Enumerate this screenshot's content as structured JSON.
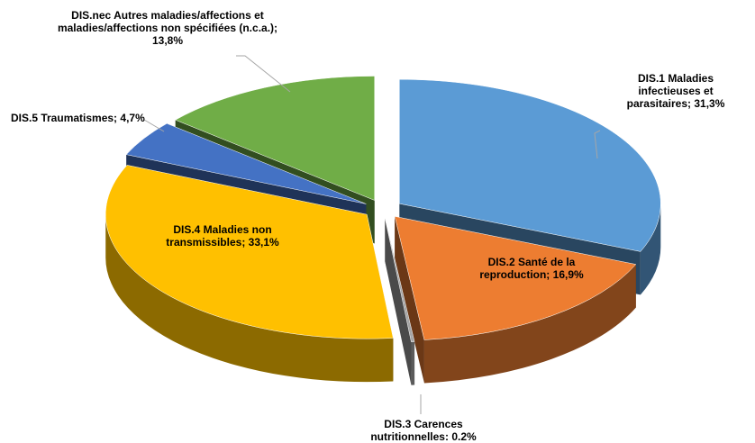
{
  "chart_data": {
    "type": "pie",
    "categories": [
      "DIS.1 Maladies infectieuses et parasitaires;",
      "DIS.2 Santé de la reproduction;",
      "DIS.3 Carences nutritionnelles:",
      "DIS.4 Maladies non transmissibles;",
      "DIS.5 Traumatismes;",
      "DIS.nec Autres maladies/affections et maladies/affections non spécifiées (n.c.a.);"
    ],
    "values": [
      31.3,
      16.9,
      0.2,
      33.1,
      4.7,
      13.8
    ],
    "value_labels": [
      "31,3%",
      "16,9%",
      "0.2%",
      "33,1%",
      "4,7%",
      "13,8%"
    ],
    "colors": [
      "#5b9bd5",
      "#ed7d31",
      "#a5a5a5",
      "#ffc000",
      "#4472c4",
      "#70ad47"
    ]
  }
}
